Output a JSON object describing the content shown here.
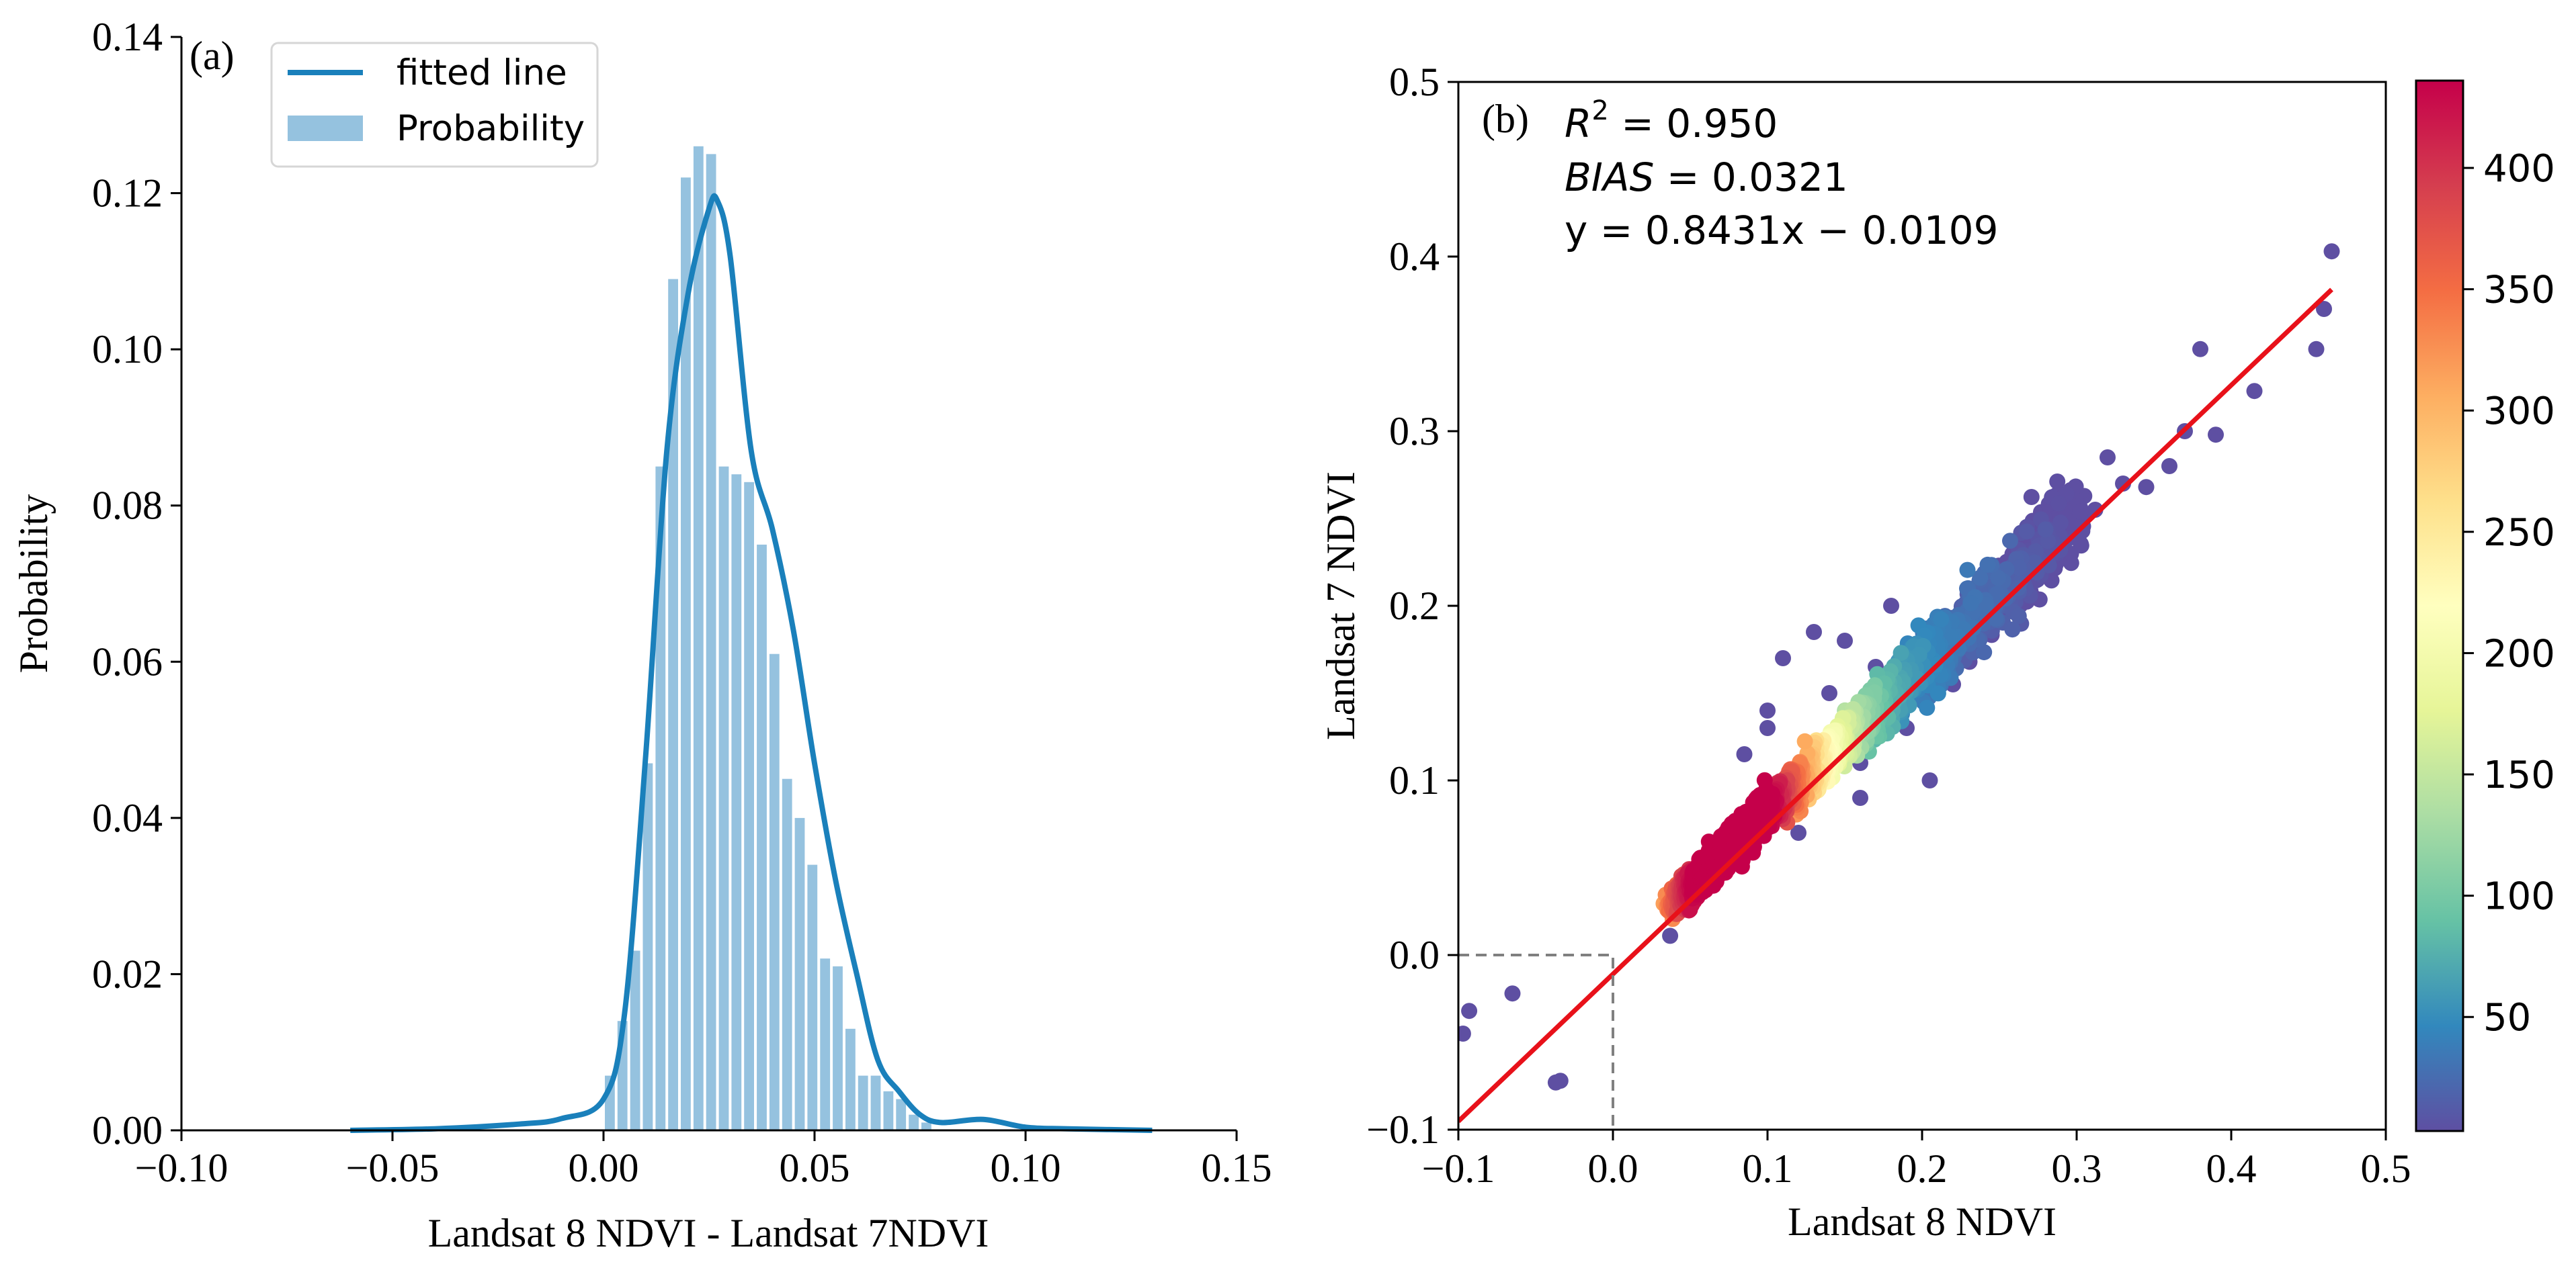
{
  "chart_data": [
    {
      "panel": "(a)",
      "type": "bar",
      "title": "",
      "xlabel": "Landsat 8 NDVI - Landsat 7NDVI",
      "ylabel": "Probability",
      "xlim": [
        -0.1,
        0.15
      ],
      "ylim": [
        0,
        0.14
      ],
      "xticks": [
        -0.1,
        -0.05,
        0.0,
        0.05,
        0.1,
        0.15
      ],
      "xtick_labels": [
        "−0.10",
        "−0.05",
        "0.00",
        "0.05",
        "0.10",
        "0.15"
      ],
      "yticks": [
        0,
        0.02,
        0.04,
        0.06,
        0.08,
        0.1,
        0.12,
        0.14
      ],
      "ytick_labels": [
        "0.00",
        "0.02",
        "0.04",
        "0.06",
        "0.08",
        "0.10",
        "0.12",
        "0.14"
      ],
      "legend": {
        "placement": "top-left",
        "entries": [
          "fitted line",
          "Probability"
        ]
      },
      "series": [
        {
          "name": "Probability",
          "kind": "histogram",
          "color": "#95c2df",
          "bin_width": 0.003,
          "bin_centers": [
            0.0015,
            0.0045,
            0.0075,
            0.0105,
            0.0135,
            0.0165,
            0.0195,
            0.0225,
            0.0255,
            0.0285,
            0.0315,
            0.0345,
            0.0375,
            0.0405,
            0.0435,
            0.0465,
            0.0495,
            0.0525,
            0.0555,
            0.0585,
            0.0615,
            0.0645,
            0.0675,
            0.0705,
            0.0735,
            0.0765
          ],
          "values": [
            0.007,
            0.014,
            0.023,
            0.047,
            0.085,
            0.109,
            0.122,
            0.126,
            0.125,
            0.085,
            0.084,
            0.083,
            0.075,
            0.061,
            0.045,
            0.04,
            0.034,
            0.022,
            0.021,
            0.013,
            0.007,
            0.007,
            0.005,
            0.004,
            0.002,
            0.001
          ]
        },
        {
          "name": "fitted line",
          "kind": "line",
          "color": "#1a80bb",
          "x": [
            -0.06,
            -0.04,
            -0.02,
            -0.01,
            0.0,
            0.005,
            0.01,
            0.015,
            0.02,
            0.025,
            0.027,
            0.03,
            0.035,
            0.04,
            0.045,
            0.05,
            0.055,
            0.06,
            0.065,
            0.07,
            0.075,
            0.08,
            0.09,
            0.1,
            0.11,
            0.13
          ],
          "values": [
            0.0,
            0.0002,
            0.0008,
            0.0015,
            0.004,
            0.015,
            0.048,
            0.087,
            0.107,
            0.118,
            0.119,
            0.112,
            0.087,
            0.077,
            0.064,
            0.047,
            0.032,
            0.02,
            0.009,
            0.005,
            0.002,
            0.001,
            0.0014,
            0.0004,
            0.0002,
            0.0
          ]
        }
      ]
    },
    {
      "panel": "(b)",
      "type": "scatter",
      "title": "",
      "xlabel": "Landsat 8 NDVI",
      "ylabel": "Landsat 7 NDVI",
      "xlim": [
        -0.1,
        0.5
      ],
      "ylim": [
        -0.1,
        0.5
      ],
      "xticks": [
        -0.1,
        0.0,
        0.1,
        0.2,
        0.3,
        0.4,
        0.5
      ],
      "xtick_labels": [
        "−0.1",
        "0.0",
        "0.1",
        "0.2",
        "0.3",
        "0.4",
        "0.5"
      ],
      "yticks": [
        -0.1,
        0.0,
        0.1,
        0.2,
        0.3,
        0.4,
        0.5
      ],
      "ytick_labels": [
        "−0.1",
        "0.0",
        "0.1",
        "0.2",
        "0.3",
        "0.4",
        "0.5"
      ],
      "stats": {
        "r2_label": "R",
        "r2_exp": "2",
        "r2_text": " = 0.950",
        "r2": 0.95,
        "bias_label": "BIAS",
        "bias_text": " = 0.0321",
        "bias": 0.0321,
        "fit_text": "y = 0.8431x − 0.0109",
        "slope": 0.8431,
        "intercept": -0.0109
      },
      "fit_line": {
        "x": [
          -0.1,
          0.465
        ],
        "color": "#e8111a"
      },
      "reference_box": {
        "x": [
          -0.1,
          0.0
        ],
        "y": [
          -0.1,
          0.0
        ],
        "style": "dashed",
        "color": "#808080"
      },
      "density_scatter": {
        "cluster": {
          "x_from": 0.045,
          "x_to": 0.3,
          "peak_x": 0.08,
          "spread": 0.018
        },
        "outliers": [
          [
            -0.097,
            -0.045
          ],
          [
            -0.093,
            -0.032
          ],
          [
            -0.065,
            -0.022
          ],
          [
            -0.037,
            -0.073
          ],
          [
            -0.034,
            -0.072
          ],
          [
            0.037,
            0.011
          ],
          [
            0.465,
            0.403
          ],
          [
            0.46,
            0.37
          ],
          [
            0.455,
            0.347
          ],
          [
            0.415,
            0.323
          ],
          [
            0.38,
            0.347
          ],
          [
            0.37,
            0.3
          ],
          [
            0.36,
            0.28
          ],
          [
            0.39,
            0.298
          ],
          [
            0.345,
            0.268
          ],
          [
            0.33,
            0.27
          ],
          [
            0.32,
            0.285
          ],
          [
            0.312,
            0.255
          ],
          [
            0.295,
            0.248
          ],
          [
            0.28,
            0.23
          ],
          [
            0.12,
            0.07
          ],
          [
            0.2,
            0.16
          ],
          [
            0.17,
            0.165
          ],
          [
            0.16,
            0.11
          ],
          [
            0.22,
            0.155
          ],
          [
            0.24,
            0.185
          ],
          [
            0.25,
            0.2
          ],
          [
            0.26,
            0.21
          ],
          [
            0.1,
            0.14
          ],
          [
            0.11,
            0.17
          ],
          [
            0.13,
            0.185
          ],
          [
            0.15,
            0.18
          ],
          [
            0.18,
            0.2
          ],
          [
            0.085,
            0.115
          ],
          [
            0.1,
            0.13
          ],
          [
            0.205,
            0.1
          ],
          [
            0.19,
            0.13
          ],
          [
            0.23,
            0.17
          ],
          [
            0.09,
            0.08
          ],
          [
            0.14,
            0.15
          ],
          [
            0.16,
            0.09
          ]
        ]
      },
      "colorbar": {
        "min": 3,
        "max": 436,
        "ticks": [
          50,
          100,
          150,
          200,
          250,
          300,
          350,
          400
        ],
        "tick_labels": [
          "50",
          "100",
          "150",
          "200",
          "250",
          "300",
          "350",
          "400"
        ],
        "colormap": "Spectral_r",
        "stops": [
          "#5e4fa2",
          "#3288bd",
          "#66c2a5",
          "#abdda4",
          "#e6f598",
          "#ffffbf",
          "#fee08b",
          "#fdae61",
          "#f46d43",
          "#d53e4f",
          "#c5004a"
        ]
      }
    }
  ]
}
